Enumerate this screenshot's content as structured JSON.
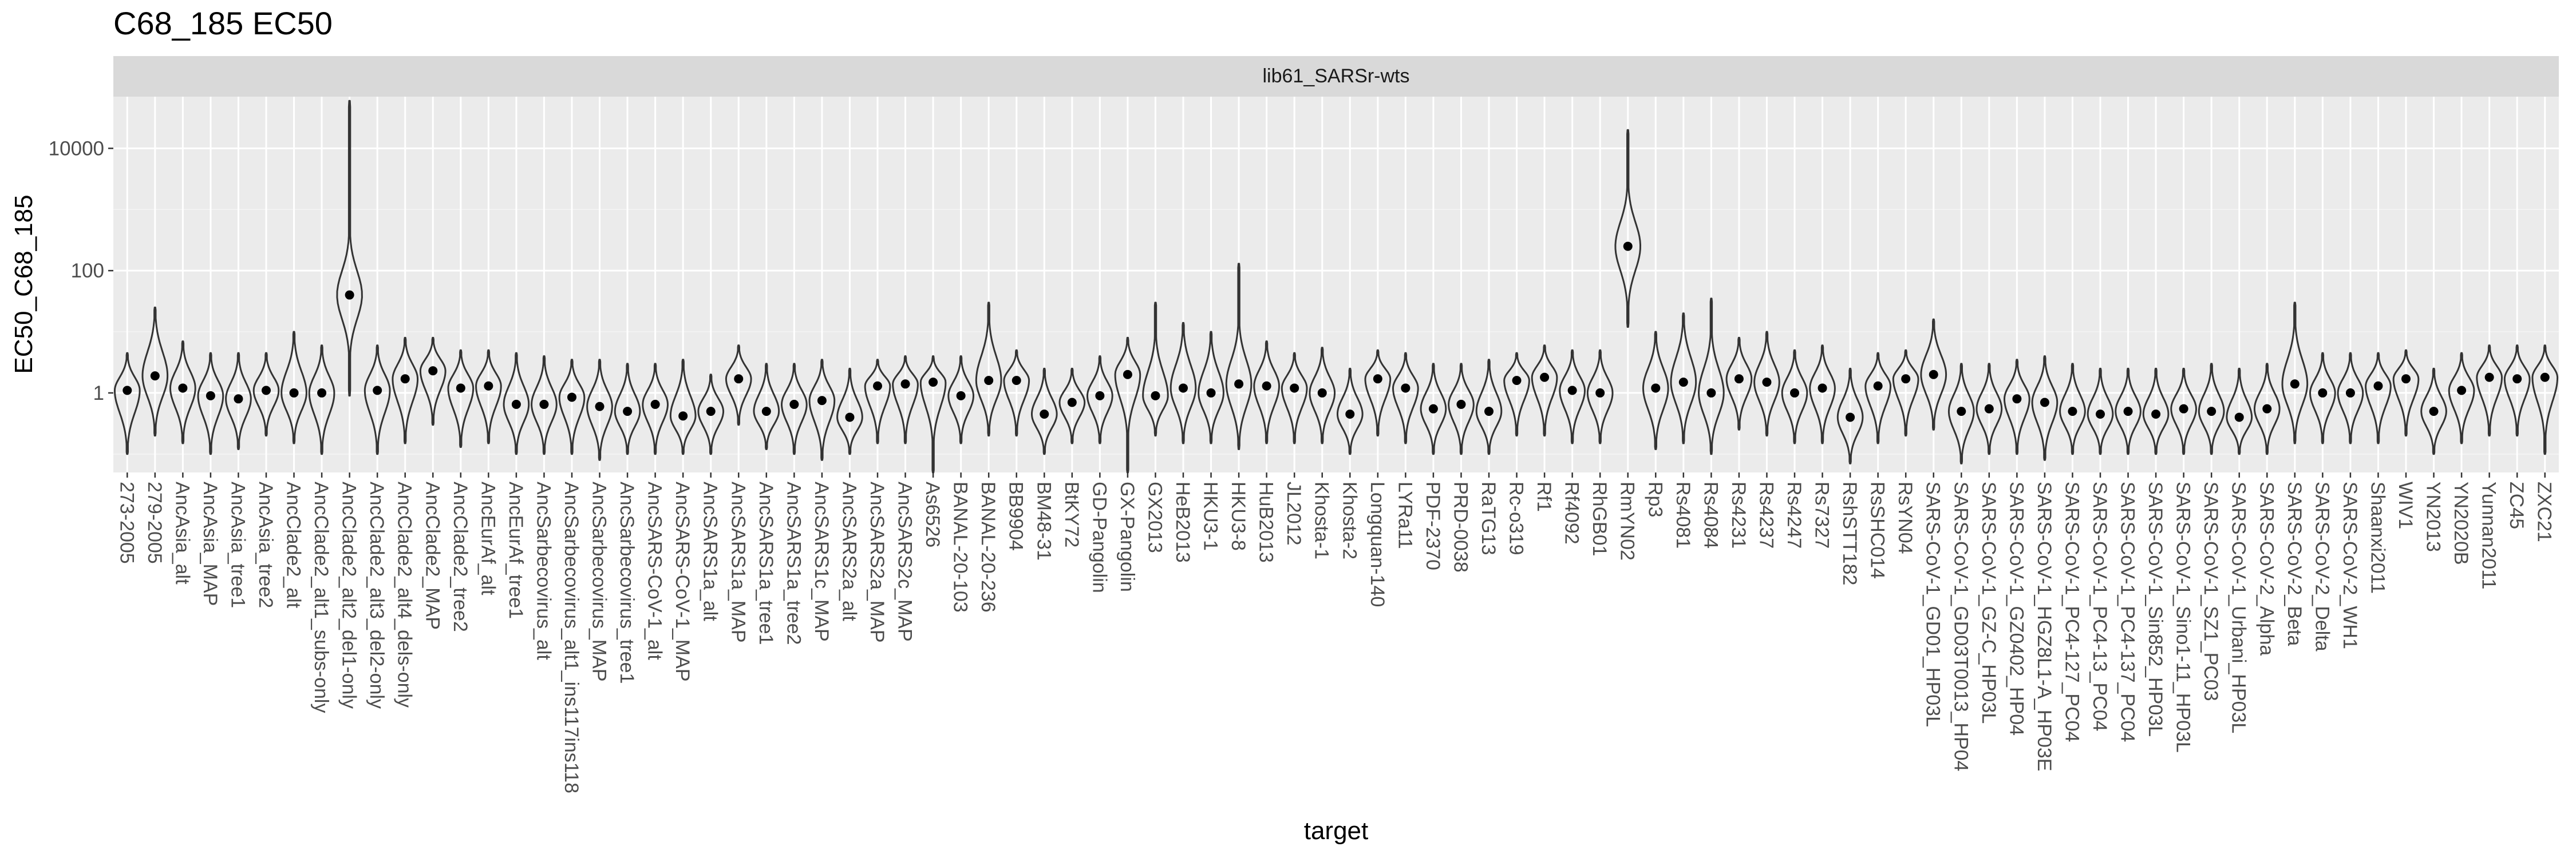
{
  "chart_data": {
    "type": "violin",
    "title": "C68_185 EC50",
    "facet": "lib61_SARSr-wts",
    "xlabel": "target",
    "ylabel": "EC50_C68_185",
    "yscale": "log10",
    "yticks": [
      1,
      100,
      10000
    ],
    "ytick_labels": [
      "1",
      "100",
      "10000"
    ],
    "ylim": [
      0.05,
      70000
    ],
    "grid": true,
    "background": "#ebebeb",
    "strip_color": "#d9d9d9",
    "points": [
      {
        "target": "273-2005",
        "median": 1.1,
        "lo": 0.1,
        "hi": 4.5
      },
      {
        "target": "279-2005",
        "median": 1.9,
        "lo": 0.2,
        "hi": 25
      },
      {
        "target": "AncAsia_alt",
        "median": 1.2,
        "lo": 0.15,
        "hi": 7
      },
      {
        "target": "AncAsia_MAP",
        "median": 0.9,
        "lo": 0.1,
        "hi": 4.5
      },
      {
        "target": "AncAsia_tree1",
        "median": 0.8,
        "lo": 0.12,
        "hi": 4.5
      },
      {
        "target": "AncAsia_tree2",
        "median": 1.1,
        "lo": 0.2,
        "hi": 4.5
      },
      {
        "target": "AncClade2_alt",
        "median": 1.0,
        "lo": 0.15,
        "hi": 10
      },
      {
        "target": "AncClade2_alt1_subs-only",
        "median": 1.0,
        "lo": 0.1,
        "hi": 6
      },
      {
        "target": "AncClade2_alt2_del1-only",
        "median": 40,
        "lo": 0.9,
        "hi": 60000
      },
      {
        "target": "AncClade2_alt3_del2-only",
        "median": 1.1,
        "lo": 0.1,
        "hi": 6
      },
      {
        "target": "AncClade2_alt4_dels-only",
        "median": 1.7,
        "lo": 0.15,
        "hi": 8
      },
      {
        "target": "AncClade2_MAP",
        "median": 2.3,
        "lo": 0.3,
        "hi": 8
      },
      {
        "target": "AncClade2_tree2",
        "median": 1.2,
        "lo": 0.13,
        "hi": 5
      },
      {
        "target": "AncEurAf_alt",
        "median": 1.3,
        "lo": 0.15,
        "hi": 5
      },
      {
        "target": "AncEurAf_tree1",
        "median": 0.65,
        "lo": 0.1,
        "hi": 4.5
      },
      {
        "target": "AncSarbecovirus_alt",
        "median": 0.65,
        "lo": 0.1,
        "hi": 4
      },
      {
        "target": "AncSarbecovirus_alt1_ins117ins118",
        "median": 0.85,
        "lo": 0.1,
        "hi": 3.5
      },
      {
        "target": "AncSarbecovirus_MAP",
        "median": 0.6,
        "lo": 0.08,
        "hi": 3.5
      },
      {
        "target": "AncSarbecovirus_tree1",
        "median": 0.5,
        "lo": 0.1,
        "hi": 3
      },
      {
        "target": "AncSARS-CoV-1_alt",
        "median": 0.65,
        "lo": 0.1,
        "hi": 3
      },
      {
        "target": "AncSARS-CoV-1_MAP",
        "median": 0.42,
        "lo": 0.1,
        "hi": 3.5
      },
      {
        "target": "AncSARS1a_alt",
        "median": 0.5,
        "lo": 0.1,
        "hi": 2
      },
      {
        "target": "AncSARS1a_MAP",
        "median": 1.7,
        "lo": 0.3,
        "hi": 6
      },
      {
        "target": "AncSARS1a_tree1",
        "median": 0.5,
        "lo": 0.12,
        "hi": 3
      },
      {
        "target": "AncSARS1a_tree2",
        "median": 0.65,
        "lo": 0.1,
        "hi": 3
      },
      {
        "target": "AncSARS1c_MAP",
        "median": 0.75,
        "lo": 0.08,
        "hi": 3.5
      },
      {
        "target": "AncSARS2a_alt",
        "median": 0.4,
        "lo": 0.1,
        "hi": 2.5
      },
      {
        "target": "AncSARS2a_MAP",
        "median": 1.3,
        "lo": 0.15,
        "hi": 3.5
      },
      {
        "target": "AncSARS2c_MAP",
        "median": 1.4,
        "lo": 0.15,
        "hi": 4
      },
      {
        "target": "As6526",
        "median": 1.5,
        "lo": 0.05,
        "hi": 4
      },
      {
        "target": "BANAL-20-103",
        "median": 0.9,
        "lo": 0.15,
        "hi": 4
      },
      {
        "target": "BANAL-20-236",
        "median": 1.6,
        "lo": 0.2,
        "hi": 30
      },
      {
        "target": "BB9904",
        "median": 1.6,
        "lo": 0.2,
        "hi": 5
      },
      {
        "target": "BM48-31",
        "median": 0.45,
        "lo": 0.1,
        "hi": 2.5
      },
      {
        "target": "BtKY72",
        "median": 0.7,
        "lo": 0.15,
        "hi": 2.5
      },
      {
        "target": "GD-Pangolin",
        "median": 0.9,
        "lo": 0.15,
        "hi": 4
      },
      {
        "target": "GX-Pangolin",
        "median": 2.0,
        "lo": 0.05,
        "hi": 8
      },
      {
        "target": "GX2013",
        "median": 0.9,
        "lo": 0.2,
        "hi": 30
      },
      {
        "target": "HeB2013",
        "median": 1.2,
        "lo": 0.15,
        "hi": 14
      },
      {
        "target": "HKU3-1",
        "median": 1.0,
        "lo": 0.15,
        "hi": 10
      },
      {
        "target": "HKU3-8",
        "median": 1.4,
        "lo": 0.12,
        "hi": 130
      },
      {
        "target": "HuB2013",
        "median": 1.3,
        "lo": 0.15,
        "hi": 7
      },
      {
        "target": "JL2012",
        "median": 1.2,
        "lo": 0.15,
        "hi": 4.5
      },
      {
        "target": "Khosta-1",
        "median": 1.0,
        "lo": 0.15,
        "hi": 5.5
      },
      {
        "target": "Khosta-2",
        "median": 0.45,
        "lo": 0.1,
        "hi": 2.5
      },
      {
        "target": "Longquan-140",
        "median": 1.7,
        "lo": 0.2,
        "hi": 5
      },
      {
        "target": "LYRa11",
        "median": 1.2,
        "lo": 0.15,
        "hi": 4.5
      },
      {
        "target": "PDF-2370",
        "median": 0.55,
        "lo": 0.1,
        "hi": 3
      },
      {
        "target": "PRD-0038",
        "median": 0.65,
        "lo": 0.1,
        "hi": 3
      },
      {
        "target": "RaTG13",
        "median": 0.5,
        "lo": 0.1,
        "hi": 3.5
      },
      {
        "target": "Rc-o319",
        "median": 1.6,
        "lo": 0.2,
        "hi": 4.5
      },
      {
        "target": "Rf1",
        "median": 1.8,
        "lo": 0.2,
        "hi": 6
      },
      {
        "target": "Rf4092",
        "median": 1.1,
        "lo": 0.15,
        "hi": 5
      },
      {
        "target": "RhGB01",
        "median": 1.0,
        "lo": 0.15,
        "hi": 5
      },
      {
        "target": "RmYN02",
        "median": 250,
        "lo": 12,
        "hi": 20000
      },
      {
        "target": "Rp3",
        "median": 1.2,
        "lo": 0.12,
        "hi": 10
      },
      {
        "target": "Rs4081",
        "median": 1.5,
        "lo": 0.15,
        "hi": 20
      },
      {
        "target": "Rs4084",
        "median": 1.0,
        "lo": 0.1,
        "hi": 35
      },
      {
        "target": "Rs4231",
        "median": 1.7,
        "lo": 0.25,
        "hi": 8
      },
      {
        "target": "Rs4237",
        "median": 1.5,
        "lo": 0.2,
        "hi": 10
      },
      {
        "target": "Rs4247",
        "median": 1.0,
        "lo": 0.15,
        "hi": 5
      },
      {
        "target": "Rs7327",
        "median": 1.2,
        "lo": 0.15,
        "hi": 6
      },
      {
        "target": "RshSTT182",
        "median": 0.4,
        "lo": 0.07,
        "hi": 2.5
      },
      {
        "target": "RsSHC014",
        "median": 1.3,
        "lo": 0.15,
        "hi": 4.5
      },
      {
        "target": "RsYN04",
        "median": 1.7,
        "lo": 0.2,
        "hi": 5
      },
      {
        "target": "SARS-CoV-1_GD01_HP03L",
        "median": 2.0,
        "lo": 0.25,
        "hi": 16
      },
      {
        "target": "SARS-CoV-1_GD03T0013_HP04",
        "median": 0.5,
        "lo": 0.07,
        "hi": 3
      },
      {
        "target": "SARS-CoV-1_GZ-C_HP03L",
        "median": 0.55,
        "lo": 0.1,
        "hi": 3
      },
      {
        "target": "SARS-CoV-1_GZ0402_HP04",
        "median": 0.8,
        "lo": 0.1,
        "hi": 3.5
      },
      {
        "target": "SARS-CoV-1_HGZ8L1-A_HP03E",
        "median": 0.7,
        "lo": 0.08,
        "hi": 4
      },
      {
        "target": "SARS-CoV-1_PC4-127_PC04",
        "median": 0.5,
        "lo": 0.1,
        "hi": 3
      },
      {
        "target": "SARS-CoV-1_PC4-13_PC04",
        "median": 0.45,
        "lo": 0.1,
        "hi": 2.5
      },
      {
        "target": "SARS-CoV-1_PC4-137_PC04",
        "median": 0.5,
        "lo": 0.1,
        "hi": 2.5
      },
      {
        "target": "SARS-CoV-1_Sin852_HP03L",
        "median": 0.45,
        "lo": 0.1,
        "hi": 2.5
      },
      {
        "target": "SARS-CoV-1_Sino1-11_HP03L",
        "median": 0.55,
        "lo": 0.1,
        "hi": 2.5
      },
      {
        "target": "SARS-CoV-1_SZ1_PC03",
        "median": 0.5,
        "lo": 0.1,
        "hi": 3
      },
      {
        "target": "SARS-CoV-1_Urbani_HP03L",
        "median": 0.4,
        "lo": 0.1,
        "hi": 2.5
      },
      {
        "target": "SARS-CoV-2_Alpha",
        "median": 0.55,
        "lo": 0.1,
        "hi": 3
      },
      {
        "target": "SARS-CoV-2_Beta",
        "median": 1.4,
        "lo": 0.15,
        "hi": 30
      },
      {
        "target": "SARS-CoV-2_Delta",
        "median": 1.0,
        "lo": 0.15,
        "hi": 4.5
      },
      {
        "target": "SARS-CoV-2_WH1",
        "median": 1.0,
        "lo": 0.15,
        "hi": 4.5
      },
      {
        "target": "Shaanxi2011",
        "median": 1.3,
        "lo": 0.15,
        "hi": 4.5
      },
      {
        "target": "WIV1",
        "median": 1.7,
        "lo": 0.2,
        "hi": 5
      },
      {
        "target": "YN2013",
        "median": 0.5,
        "lo": 0.1,
        "hi": 2.5
      },
      {
        "target": "YN2020B",
        "median": 1.1,
        "lo": 0.15,
        "hi": 4.5
      },
      {
        "target": "Yunnan2011",
        "median": 1.8,
        "lo": 0.2,
        "hi": 6
      },
      {
        "target": "ZC45",
        "median": 1.7,
        "lo": 0.2,
        "hi": 6
      },
      {
        "target": "ZXC21",
        "median": 1.8,
        "lo": 0.1,
        "hi": 6
      }
    ]
  }
}
